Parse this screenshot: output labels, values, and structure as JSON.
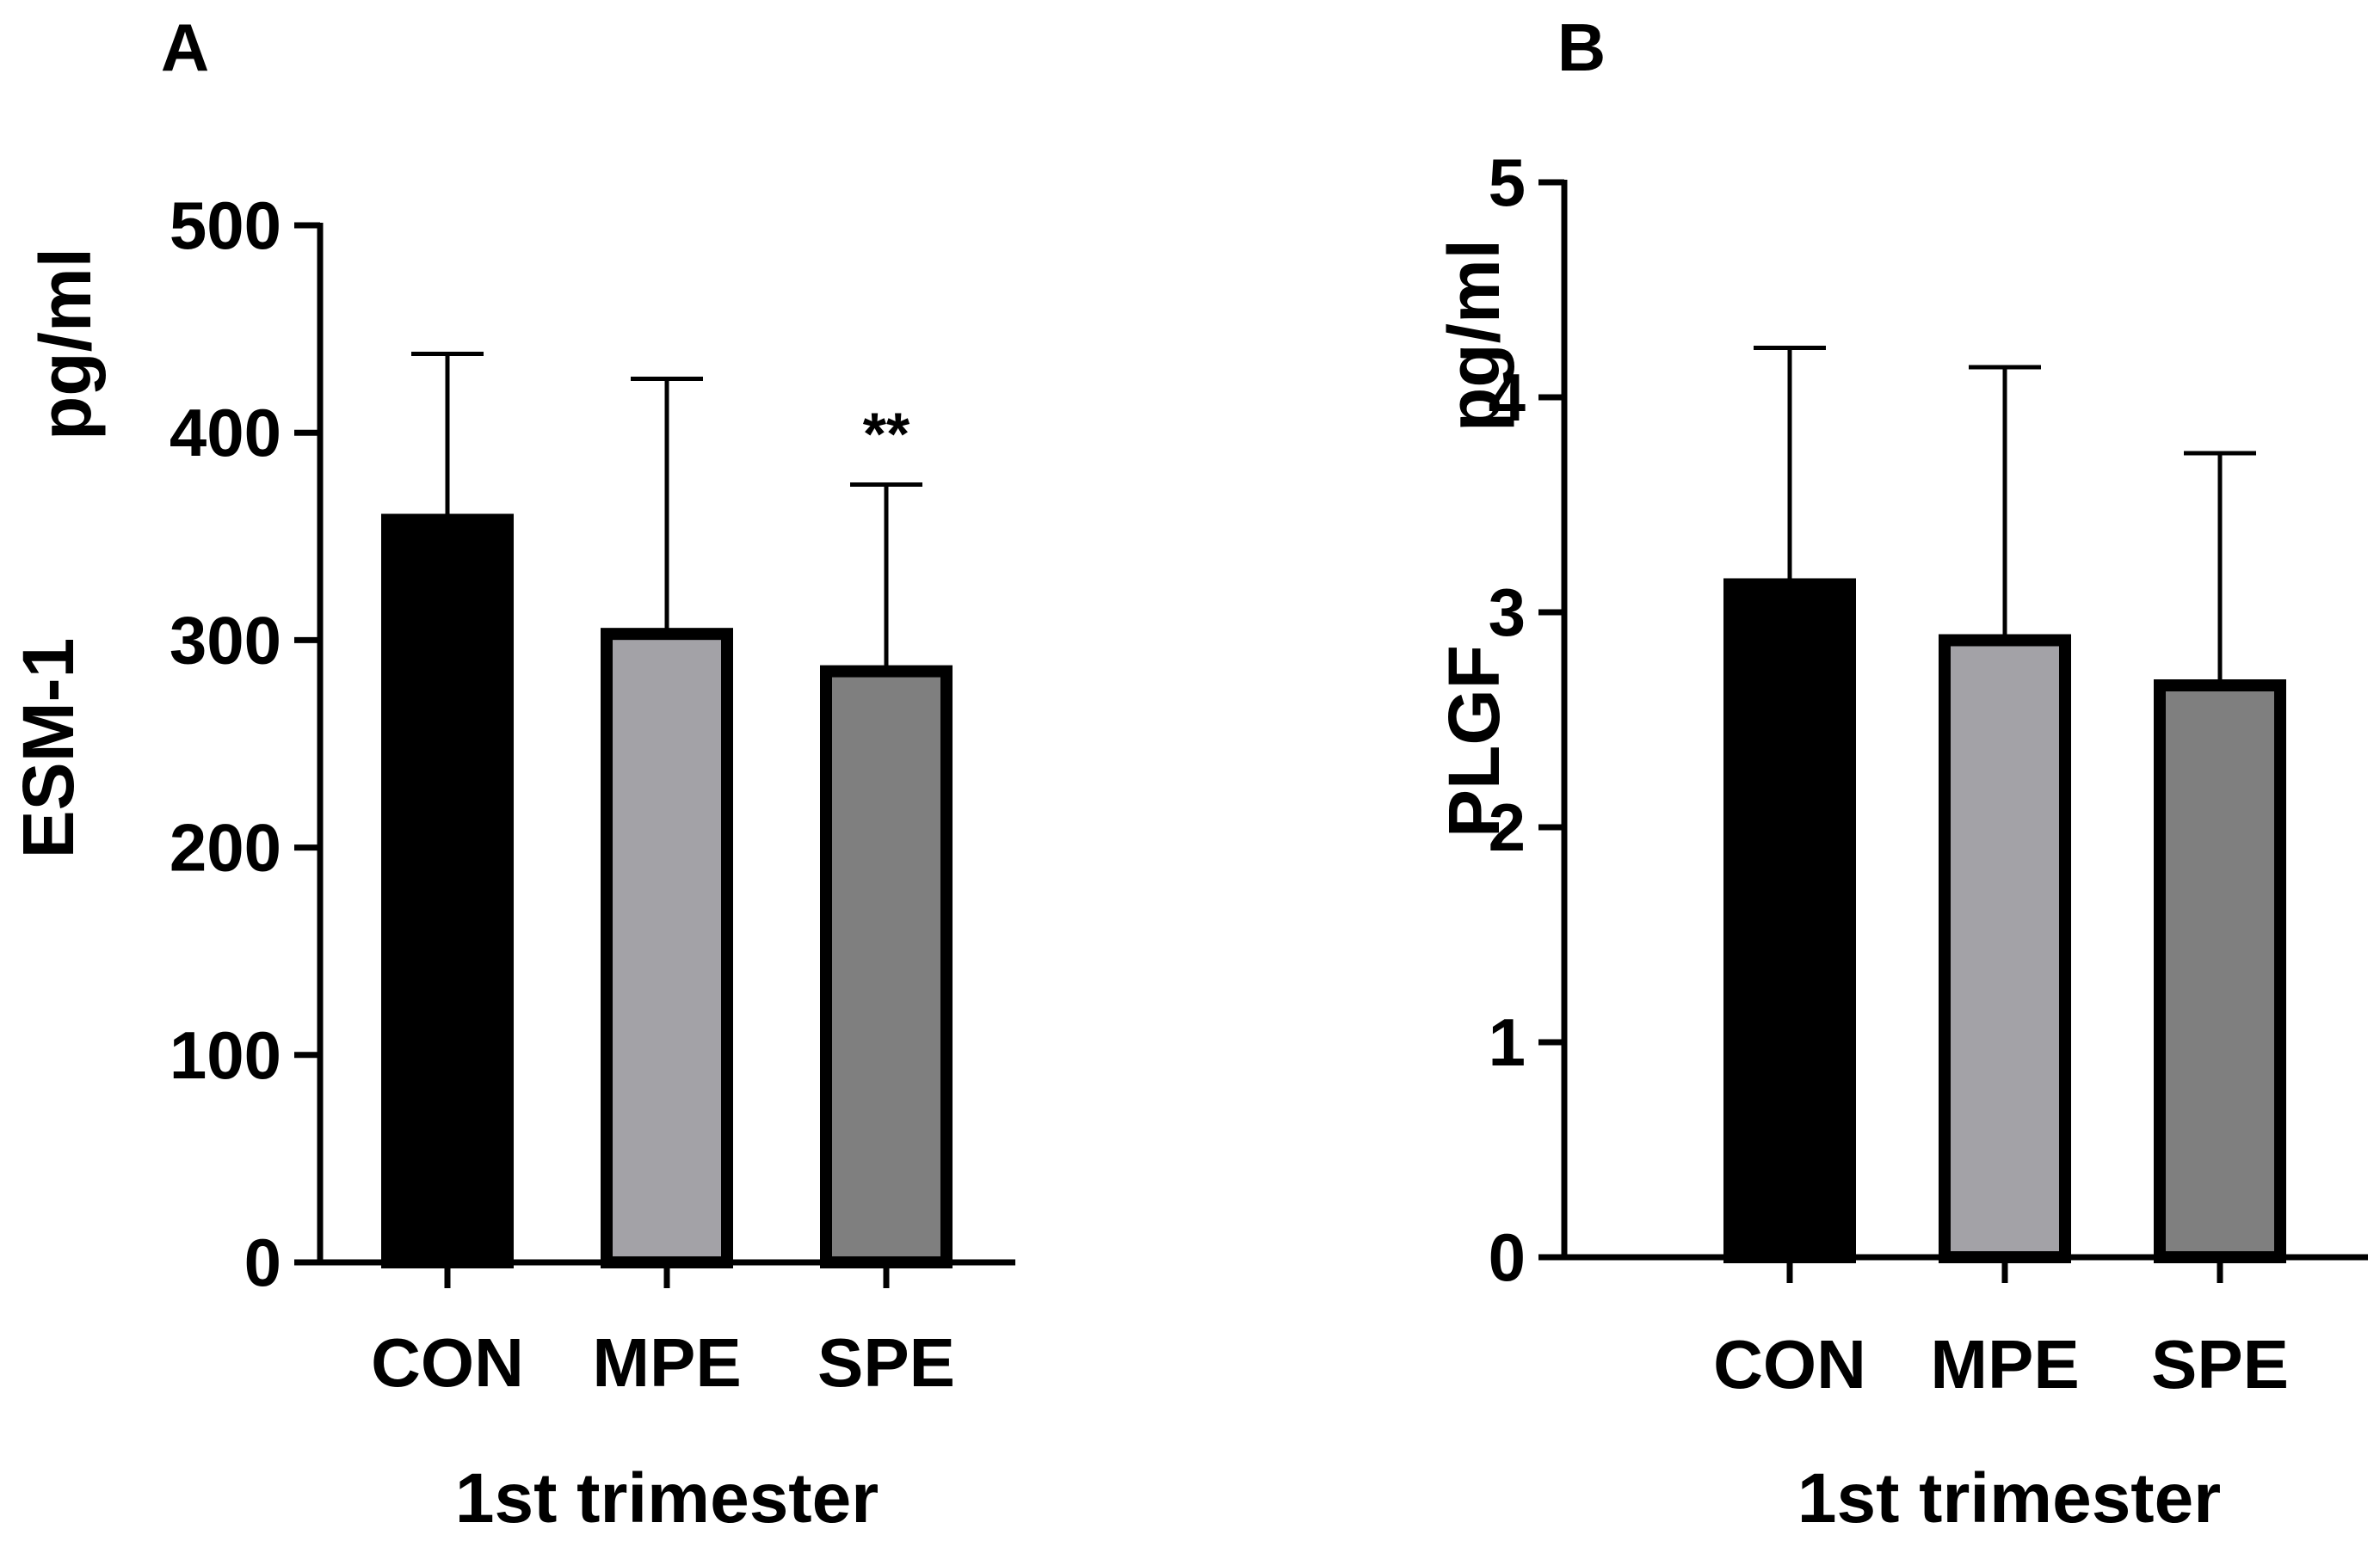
{
  "chart_data": [
    {
      "panel_label": "A",
      "type": "bar",
      "categories": [
        "CON",
        "MPE",
        "SPE"
      ],
      "series": [
        {
          "name": "ESM-1",
          "values": [
            358,
            303,
            285
          ],
          "error_upper": [
            438,
            426,
            375
          ],
          "annotations": [
            "",
            "",
            "**"
          ],
          "colors": [
            "#000000",
            "#a3a2a7",
            "#7f7f7f"
          ]
        }
      ],
      "ylabel_main": "ESM-1",
      "ylabel_unit": "pg/ml",
      "xlabel": "1st trimester",
      "ylim": [
        0,
        500
      ],
      "yticks": [
        0,
        100,
        200,
        300,
        400,
        500
      ],
      "ytick_labels": [
        "0",
        "100",
        "200",
        "300",
        "400",
        "500"
      ]
    },
    {
      "panel_label": "B",
      "type": "bar",
      "categories": [
        "CON",
        "MPE",
        "SPE"
      ],
      "series": [
        {
          "name": "PLGF",
          "values": [
            3.13,
            2.87,
            2.66
          ],
          "error_upper": [
            4.23,
            4.14,
            3.74
          ],
          "annotations": [
            "",
            "",
            ""
          ],
          "colors": [
            "#000000",
            "#a3a2a7",
            "#7f7f7f"
          ]
        }
      ],
      "ylabel_main": "PLGF",
      "ylabel_unit": "pg/ml",
      "xlabel": "1st trimester",
      "ylim": [
        0,
        5
      ],
      "yticks": [
        0,
        1,
        2,
        3,
        4,
        5
      ],
      "ytick_labels": [
        "0",
        "1",
        "2",
        "3",
        "4",
        "5"
      ]
    }
  ]
}
